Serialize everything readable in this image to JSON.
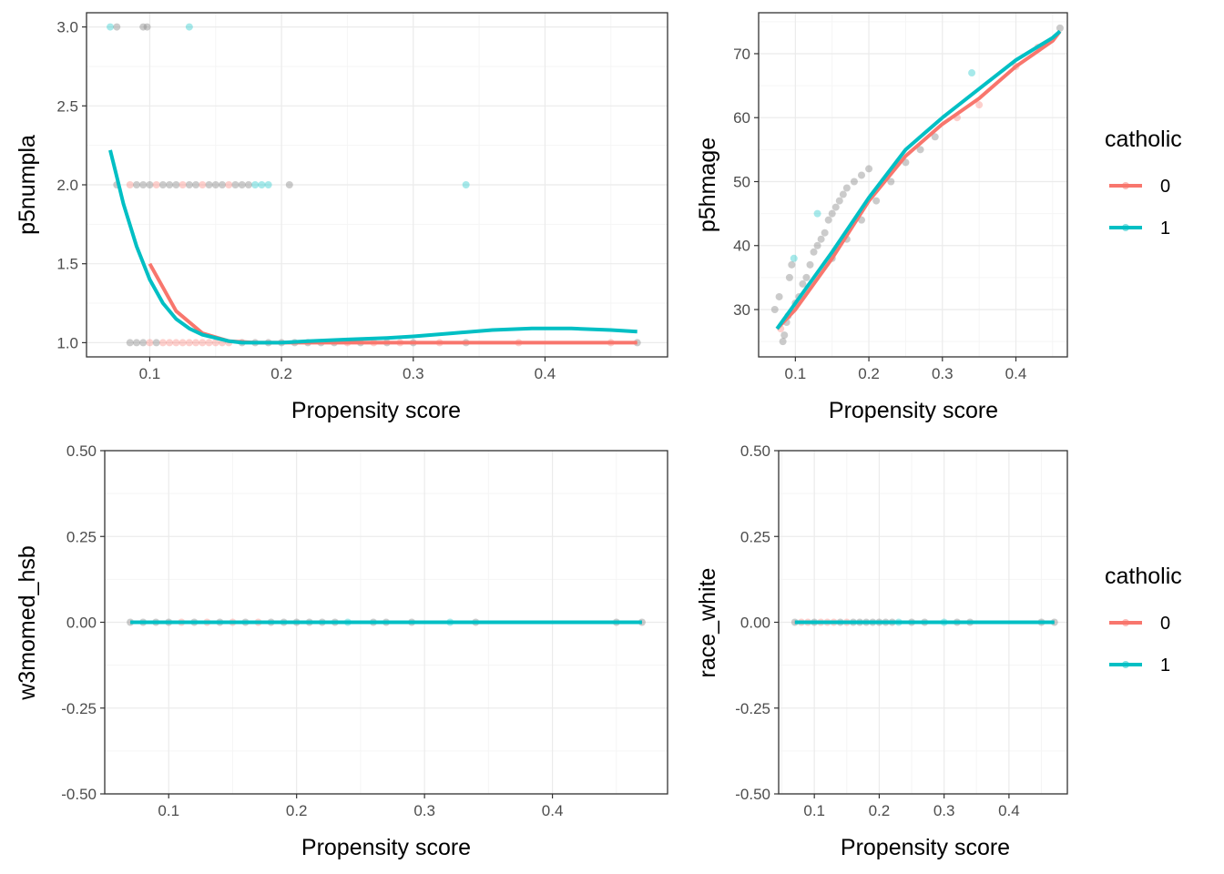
{
  "colors": {
    "group_0": "#F8766D",
    "group_1": "#00BFC4",
    "panel_border": "#333333",
    "grid_major": "#ebebeb",
    "grid_minor": "#f5f5f5",
    "point_overlap": "#8c8c8c"
  },
  "legend": {
    "title": "catholic",
    "entries": [
      "0",
      "1"
    ]
  },
  "chart_data": [
    {
      "id": "p5numpla",
      "type": "scatter",
      "xlabel": "Propensity score",
      "ylabel": "p5numpla",
      "xlim": [
        0.052,
        0.493
      ],
      "ylim": [
        0.91,
        3.09
      ],
      "xticks": [
        0.1,
        0.2,
        0.3,
        0.4
      ],
      "xtick_labels": [
        "0.1",
        "0.2",
        "0.3",
        "0.4"
      ],
      "yticks": [
        1.0,
        1.5,
        2.0,
        2.5,
        3.0
      ],
      "ytick_labels": [
        "1.0",
        "1.5",
        "2.0",
        "2.5",
        "3.0"
      ],
      "points": [
        {
          "x": 0.07,
          "y": 3,
          "g": "1"
        },
        {
          "x": 0.075,
          "y": 3,
          "g": "mix"
        },
        {
          "x": 0.095,
          "y": 3,
          "g": "mix"
        },
        {
          "x": 0.098,
          "y": 3,
          "g": "mix"
        },
        {
          "x": 0.13,
          "y": 3,
          "g": "1"
        },
        {
          "x": 0.075,
          "y": 2,
          "g": "mix"
        },
        {
          "x": 0.085,
          "y": 2,
          "g": "0"
        },
        {
          "x": 0.09,
          "y": 2,
          "g": "mix"
        },
        {
          "x": 0.095,
          "y": 2,
          "g": "mix"
        },
        {
          "x": 0.1,
          "y": 2,
          "g": "mix"
        },
        {
          "x": 0.105,
          "y": 2,
          "g": "0"
        },
        {
          "x": 0.11,
          "y": 2,
          "g": "mix"
        },
        {
          "x": 0.115,
          "y": 2,
          "g": "mix"
        },
        {
          "x": 0.12,
          "y": 2,
          "g": "mix"
        },
        {
          "x": 0.125,
          "y": 2,
          "g": "0"
        },
        {
          "x": 0.13,
          "y": 2,
          "g": "mix"
        },
        {
          "x": 0.135,
          "y": 2,
          "g": "mix"
        },
        {
          "x": 0.14,
          "y": 2,
          "g": "0"
        },
        {
          "x": 0.145,
          "y": 2,
          "g": "mix"
        },
        {
          "x": 0.15,
          "y": 2,
          "g": "mix"
        },
        {
          "x": 0.155,
          "y": 2,
          "g": "mix"
        },
        {
          "x": 0.16,
          "y": 2,
          "g": "0"
        },
        {
          "x": 0.165,
          "y": 2,
          "g": "mix"
        },
        {
          "x": 0.17,
          "y": 2,
          "g": "mix"
        },
        {
          "x": 0.175,
          "y": 2,
          "g": "mix"
        },
        {
          "x": 0.18,
          "y": 2,
          "g": "1"
        },
        {
          "x": 0.185,
          "y": 2,
          "g": "1"
        },
        {
          "x": 0.19,
          "y": 2,
          "g": "1"
        },
        {
          "x": 0.206,
          "y": 2,
          "g": "mix"
        },
        {
          "x": 0.34,
          "y": 2,
          "g": "1"
        },
        {
          "x": 0.085,
          "y": 1,
          "g": "mix"
        },
        {
          "x": 0.09,
          "y": 1,
          "g": "mix"
        },
        {
          "x": 0.095,
          "y": 1,
          "g": "mix"
        },
        {
          "x": 0.1,
          "y": 1,
          "g": "0"
        },
        {
          "x": 0.105,
          "y": 1,
          "g": "mix"
        },
        {
          "x": 0.11,
          "y": 1,
          "g": "0"
        },
        {
          "x": 0.115,
          "y": 1,
          "g": "0"
        },
        {
          "x": 0.12,
          "y": 1,
          "g": "0"
        },
        {
          "x": 0.125,
          "y": 1,
          "g": "0"
        },
        {
          "x": 0.13,
          "y": 1,
          "g": "0"
        },
        {
          "x": 0.135,
          "y": 1,
          "g": "0"
        },
        {
          "x": 0.14,
          "y": 1,
          "g": "0"
        },
        {
          "x": 0.145,
          "y": 1,
          "g": "0"
        },
        {
          "x": 0.15,
          "y": 1,
          "g": "0"
        },
        {
          "x": 0.155,
          "y": 1,
          "g": "0"
        },
        {
          "x": 0.16,
          "y": 1,
          "g": "0"
        },
        {
          "x": 0.17,
          "y": 1,
          "g": "mix"
        },
        {
          "x": 0.18,
          "y": 1,
          "g": "mix"
        },
        {
          "x": 0.19,
          "y": 1,
          "g": "mix"
        },
        {
          "x": 0.2,
          "y": 1,
          "g": "mix"
        },
        {
          "x": 0.21,
          "y": 1,
          "g": "mix"
        },
        {
          "x": 0.22,
          "y": 1,
          "g": "mix"
        },
        {
          "x": 0.23,
          "y": 1,
          "g": "mix"
        },
        {
          "x": 0.24,
          "y": 1,
          "g": "mix"
        },
        {
          "x": 0.25,
          "y": 1,
          "g": "0"
        },
        {
          "x": 0.26,
          "y": 1,
          "g": "mix"
        },
        {
          "x": 0.27,
          "y": 1,
          "g": "0"
        },
        {
          "x": 0.28,
          "y": 1,
          "g": "mix"
        },
        {
          "x": 0.29,
          "y": 1,
          "g": "0"
        },
        {
          "x": 0.3,
          "y": 1,
          "g": "mix"
        },
        {
          "x": 0.32,
          "y": 1,
          "g": "0"
        },
        {
          "x": 0.34,
          "y": 1,
          "g": "mix"
        },
        {
          "x": 0.38,
          "y": 1,
          "g": "0"
        },
        {
          "x": 0.45,
          "y": 1,
          "g": "0"
        },
        {
          "x": 0.47,
          "y": 1,
          "g": "mix"
        }
      ],
      "series": [
        {
          "name": "0",
          "x": [
            0.1,
            0.12,
            0.14,
            0.16,
            0.18,
            0.2,
            0.25,
            0.3,
            0.35,
            0.4,
            0.47
          ],
          "y": [
            1.5,
            1.2,
            1.06,
            1.01,
            1.0,
            1.0,
            1.0,
            1.0,
            1.0,
            1.0,
            1.0
          ]
        },
        {
          "name": "1",
          "x": [
            0.07,
            0.075,
            0.08,
            0.09,
            0.1,
            0.11,
            0.12,
            0.13,
            0.14,
            0.15,
            0.16,
            0.17,
            0.18,
            0.2,
            0.22,
            0.25,
            0.28,
            0.3,
            0.33,
            0.36,
            0.39,
            0.42,
            0.45,
            0.47
          ],
          "y": [
            2.22,
            2.05,
            1.88,
            1.61,
            1.4,
            1.25,
            1.15,
            1.09,
            1.05,
            1.03,
            1.01,
            1.0,
            1.0,
            1.0,
            1.01,
            1.02,
            1.03,
            1.04,
            1.06,
            1.08,
            1.09,
            1.09,
            1.08,
            1.07
          ]
        }
      ]
    },
    {
      "id": "p5hmage",
      "type": "scatter",
      "xlabel": "Propensity score",
      "ylabel": "p5hmage",
      "xlim": [
        0.05,
        0.47
      ],
      "ylim": [
        22.6,
        76.4
      ],
      "xticks": [
        0.1,
        0.2,
        0.3,
        0.4
      ],
      "xtick_labels": [
        "0.1",
        "0.2",
        "0.3",
        "0.4"
      ],
      "yticks": [
        30,
        40,
        50,
        60,
        70
      ],
      "ytick_labels": [
        "30",
        "40",
        "50",
        "60",
        "70"
      ],
      "points": [
        {
          "x": 0.072,
          "y": 30,
          "g": "mix"
        },
        {
          "x": 0.078,
          "y": 32,
          "g": "mix"
        },
        {
          "x": 0.08,
          "y": 27,
          "g": "0"
        },
        {
          "x": 0.083,
          "y": 25,
          "g": "mix"
        },
        {
          "x": 0.085,
          "y": 26,
          "g": "mix"
        },
        {
          "x": 0.088,
          "y": 28,
          "g": "mix"
        },
        {
          "x": 0.09,
          "y": 29,
          "g": "mix"
        },
        {
          "x": 0.092,
          "y": 35,
          "g": "mix"
        },
        {
          "x": 0.095,
          "y": 37,
          "g": "mix"
        },
        {
          "x": 0.098,
          "y": 38,
          "g": "1"
        },
        {
          "x": 0.1,
          "y": 31,
          "g": "mix"
        },
        {
          "x": 0.105,
          "y": 32,
          "g": "mix"
        },
        {
          "x": 0.11,
          "y": 34,
          "g": "mix"
        },
        {
          "x": 0.115,
          "y": 35,
          "g": "mix"
        },
        {
          "x": 0.12,
          "y": 37,
          "g": "mix"
        },
        {
          "x": 0.125,
          "y": 39,
          "g": "mix"
        },
        {
          "x": 0.13,
          "y": 40,
          "g": "mix"
        },
        {
          "x": 0.13,
          "y": 45,
          "g": "1"
        },
        {
          "x": 0.135,
          "y": 41,
          "g": "mix"
        },
        {
          "x": 0.14,
          "y": 42,
          "g": "mix"
        },
        {
          "x": 0.145,
          "y": 44,
          "g": "mix"
        },
        {
          "x": 0.15,
          "y": 45,
          "g": "mix"
        },
        {
          "x": 0.155,
          "y": 46,
          "g": "mix"
        },
        {
          "x": 0.16,
          "y": 47,
          "g": "mix"
        },
        {
          "x": 0.165,
          "y": 48,
          "g": "mix"
        },
        {
          "x": 0.17,
          "y": 49,
          "g": "mix"
        },
        {
          "x": 0.18,
          "y": 50,
          "g": "mix"
        },
        {
          "x": 0.19,
          "y": 51,
          "g": "mix"
        },
        {
          "x": 0.2,
          "y": 52,
          "g": "mix"
        },
        {
          "x": 0.15,
          "y": 38,
          "g": "mix"
        },
        {
          "x": 0.17,
          "y": 41,
          "g": "mix"
        },
        {
          "x": 0.19,
          "y": 44,
          "g": "mix"
        },
        {
          "x": 0.21,
          "y": 47,
          "g": "mix"
        },
        {
          "x": 0.23,
          "y": 50,
          "g": "mix"
        },
        {
          "x": 0.25,
          "y": 53,
          "g": "mix"
        },
        {
          "x": 0.27,
          "y": 55,
          "g": "mix"
        },
        {
          "x": 0.29,
          "y": 57,
          "g": "mix"
        },
        {
          "x": 0.32,
          "y": 60,
          "g": "0"
        },
        {
          "x": 0.34,
          "y": 67,
          "g": "1"
        },
        {
          "x": 0.35,
          "y": 62,
          "g": "0"
        },
        {
          "x": 0.4,
          "y": 68,
          "g": "0"
        },
        {
          "x": 0.43,
          "y": 71,
          "g": "0"
        },
        {
          "x": 0.46,
          "y": 74,
          "g": "mix"
        }
      ],
      "series": [
        {
          "name": "0",
          "x": [
            0.075,
            0.1,
            0.15,
            0.2,
            0.25,
            0.3,
            0.35,
            0.4,
            0.45,
            0.46
          ],
          "y": [
            27,
            30,
            38,
            47,
            54,
            59,
            63,
            68,
            72,
            73.5
          ]
        },
        {
          "name": "1",
          "x": [
            0.075,
            0.1,
            0.15,
            0.2,
            0.25,
            0.3,
            0.35,
            0.4,
            0.45,
            0.46
          ],
          "y": [
            27,
            31,
            39,
            47.5,
            55,
            60,
            64.5,
            69,
            72.5,
            73.5
          ]
        }
      ]
    },
    {
      "id": "w3momed_hsb",
      "type": "scatter",
      "xlabel": "Propensity score",
      "ylabel": "w3momed_hsb",
      "xlim": [
        0.05,
        0.49
      ],
      "ylim": [
        -0.5,
        0.5
      ],
      "xticks": [
        0.1,
        0.2,
        0.3,
        0.4
      ],
      "xtick_labels": [
        "0.1",
        "0.2",
        "0.3",
        "0.4"
      ],
      "yticks": [
        -0.5,
        -0.25,
        0.0,
        0.25,
        0.5
      ],
      "ytick_labels": [
        "-0.50",
        "-0.25",
        "0.00",
        "0.25",
        "0.50"
      ],
      "points": [
        {
          "x": 0.07,
          "y": 0,
          "g": "mix"
        },
        {
          "x": 0.08,
          "y": 0,
          "g": "mix"
        },
        {
          "x": 0.09,
          "y": 0,
          "g": "mix"
        },
        {
          "x": 0.1,
          "y": 0,
          "g": "mix"
        },
        {
          "x": 0.11,
          "y": 0,
          "g": "0"
        },
        {
          "x": 0.12,
          "y": 0,
          "g": "mix"
        },
        {
          "x": 0.13,
          "y": 0,
          "g": "0"
        },
        {
          "x": 0.14,
          "y": 0,
          "g": "mix"
        },
        {
          "x": 0.15,
          "y": 0,
          "g": "0"
        },
        {
          "x": 0.16,
          "y": 0,
          "g": "mix"
        },
        {
          "x": 0.17,
          "y": 0,
          "g": "0"
        },
        {
          "x": 0.18,
          "y": 0,
          "g": "mix"
        },
        {
          "x": 0.19,
          "y": 0,
          "g": "mix"
        },
        {
          "x": 0.2,
          "y": 0,
          "g": "mix"
        },
        {
          "x": 0.21,
          "y": 0,
          "g": "mix"
        },
        {
          "x": 0.22,
          "y": 0,
          "g": "mix"
        },
        {
          "x": 0.23,
          "y": 0,
          "g": "mix"
        },
        {
          "x": 0.24,
          "y": 0,
          "g": "1"
        },
        {
          "x": 0.26,
          "y": 0,
          "g": "mix"
        },
        {
          "x": 0.27,
          "y": 0,
          "g": "mix"
        },
        {
          "x": 0.29,
          "y": 0,
          "g": "mix"
        },
        {
          "x": 0.32,
          "y": 0,
          "g": "1"
        },
        {
          "x": 0.34,
          "y": 0,
          "g": "mix"
        },
        {
          "x": 0.45,
          "y": 0,
          "g": "mix"
        },
        {
          "x": 0.47,
          "y": 0,
          "g": "mix"
        }
      ],
      "series": [
        {
          "name": "0",
          "x": [
            0.07,
            0.47
          ],
          "y": [
            0,
            0
          ]
        },
        {
          "name": "1",
          "x": [
            0.07,
            0.47
          ],
          "y": [
            0,
            0
          ]
        }
      ]
    },
    {
      "id": "race_white",
      "type": "scatter",
      "xlabel": "Propensity score",
      "ylabel": "race_white",
      "xlim": [
        0.045,
        0.49
      ],
      "ylim": [
        -0.5,
        0.5
      ],
      "xticks": [
        0.1,
        0.2,
        0.3,
        0.4
      ],
      "xtick_labels": [
        "0.1",
        "0.2",
        "0.3",
        "0.4"
      ],
      "yticks": [
        -0.5,
        -0.25,
        0.0,
        0.25,
        0.5
      ],
      "ytick_labels": [
        "-0.50",
        "-0.25",
        "0.00",
        "0.25",
        "0.50"
      ],
      "points": [
        {
          "x": 0.07,
          "y": 0,
          "g": "mix"
        },
        {
          "x": 0.08,
          "y": 0,
          "g": "0"
        },
        {
          "x": 0.09,
          "y": 0,
          "g": "0"
        },
        {
          "x": 0.1,
          "y": 0,
          "g": "mix"
        },
        {
          "x": 0.11,
          "y": 0,
          "g": "0"
        },
        {
          "x": 0.12,
          "y": 0,
          "g": "0"
        },
        {
          "x": 0.13,
          "y": 0,
          "g": "0"
        },
        {
          "x": 0.14,
          "y": 0,
          "g": "mix"
        },
        {
          "x": 0.15,
          "y": 0,
          "g": "0"
        },
        {
          "x": 0.16,
          "y": 0,
          "g": "mix"
        },
        {
          "x": 0.17,
          "y": 0,
          "g": "mix"
        },
        {
          "x": 0.18,
          "y": 0,
          "g": "mix"
        },
        {
          "x": 0.19,
          "y": 0,
          "g": "mix"
        },
        {
          "x": 0.2,
          "y": 0,
          "g": "mix"
        },
        {
          "x": 0.21,
          "y": 0,
          "g": "mix"
        },
        {
          "x": 0.22,
          "y": 0,
          "g": "mix"
        },
        {
          "x": 0.23,
          "y": 0,
          "g": "1"
        },
        {
          "x": 0.25,
          "y": 0,
          "g": "mix"
        },
        {
          "x": 0.27,
          "y": 0,
          "g": "mix"
        },
        {
          "x": 0.3,
          "y": 0,
          "g": "1"
        },
        {
          "x": 0.32,
          "y": 0,
          "g": "mix"
        },
        {
          "x": 0.34,
          "y": 0,
          "g": "mix"
        },
        {
          "x": 0.45,
          "y": 0,
          "g": "mix"
        },
        {
          "x": 0.47,
          "y": 0,
          "g": "mix"
        }
      ],
      "series": [
        {
          "name": "0",
          "x": [
            0.07,
            0.47
          ],
          "y": [
            0,
            0
          ]
        },
        {
          "name": "1",
          "x": [
            0.07,
            0.47
          ],
          "y": [
            0,
            0
          ]
        }
      ]
    }
  ]
}
